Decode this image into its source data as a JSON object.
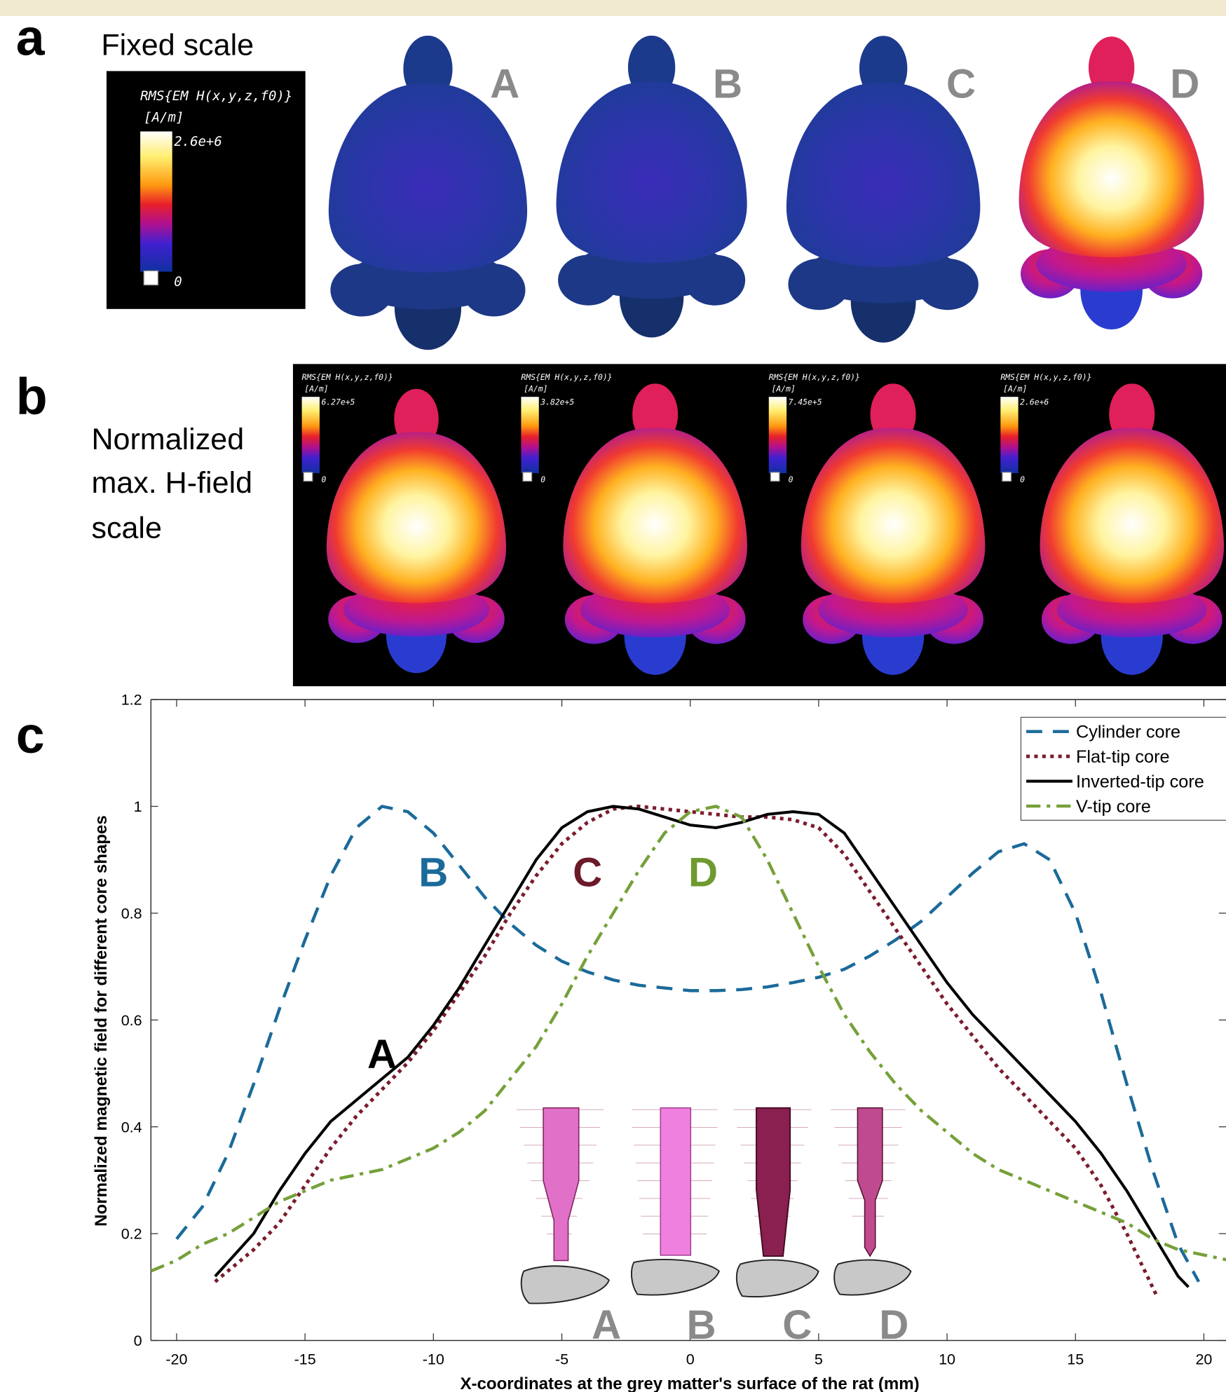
{
  "panel_a": {
    "label": "a",
    "title": "Fixed scale",
    "colorbar": {
      "quantity": "RMS{EM H(x,y,z,f0)}",
      "unit": "[A/m]",
      "max": "2.6e+6",
      "min": "0"
    },
    "brain_labels": [
      "A",
      "B",
      "C",
      "D"
    ]
  },
  "panel_b": {
    "label": "b",
    "title_lines": [
      "Normalized",
      "max. H-field",
      "scale"
    ],
    "colorbar_quantity": "RMS{EM H(x,y,z,f0)}",
    "colorbar_unit": "[A/m]",
    "colorbar_min": "0",
    "colorbar_max": [
      "6.27e+5",
      "3.82e+5",
      "7.45e+5",
      "2.6e+6"
    ]
  },
  "chart_data": {
    "type": "line",
    "panel_label": "c",
    "xlabel": "X-coordinates at the grey matter's surface of the rat (mm)",
    "ylabel": "Normalized magnetic field for different core shapes",
    "xlim": [
      -21,
      21
    ],
    "ylim": [
      0,
      1.2
    ],
    "xticks": [
      -20,
      -15,
      -10,
      -5,
      0,
      5,
      10,
      15,
      20
    ],
    "yticks": [
      0,
      0.2,
      0.4,
      0.6,
      0.8,
      1,
      1.2
    ],
    "legend": "upper right",
    "series": [
      {
        "name": "Cylinder core",
        "color": "#1b6a9a",
        "line_style": "dashed",
        "x": [
          -20,
          -19,
          -18,
          -17,
          -16,
          -15,
          -14,
          -13,
          -12,
          -11,
          -10,
          -9,
          -8,
          -7,
          -6,
          -5,
          -4,
          -3,
          -2,
          -1,
          0,
          1,
          2,
          3,
          4,
          5,
          6,
          7,
          8,
          9,
          10,
          11,
          12,
          13,
          14,
          15,
          16,
          17,
          18,
          19,
          19.8
        ],
        "values": [
          0.19,
          0.25,
          0.35,
          0.48,
          0.62,
          0.75,
          0.87,
          0.96,
          1.0,
          0.99,
          0.95,
          0.89,
          0.83,
          0.78,
          0.74,
          0.71,
          0.69,
          0.675,
          0.665,
          0.66,
          0.655,
          0.655,
          0.657,
          0.662,
          0.67,
          0.68,
          0.695,
          0.72,
          0.75,
          0.785,
          0.83,
          0.875,
          0.915,
          0.93,
          0.9,
          0.8,
          0.65,
          0.48,
          0.32,
          0.18,
          0.11
        ]
      },
      {
        "name": "Flat-tip core",
        "color": "#7a1c2e",
        "line_style": "dotted",
        "x": [
          -18.5,
          -17,
          -16,
          -15,
          -14,
          -13,
          -12,
          -11,
          -10,
          -9,
          -8,
          -7,
          -6,
          -5,
          -4,
          -3,
          -2,
          -1,
          0,
          1,
          2,
          3,
          4,
          5,
          6,
          7,
          8,
          9,
          10,
          11,
          12,
          13,
          14,
          15,
          16,
          17,
          18.2
        ],
        "values": [
          0.11,
          0.17,
          0.22,
          0.29,
          0.36,
          0.42,
          0.47,
          0.52,
          0.58,
          0.65,
          0.72,
          0.8,
          0.87,
          0.93,
          0.97,
          0.995,
          1.0,
          0.995,
          0.99,
          0.985,
          0.98,
          0.98,
          0.975,
          0.96,
          0.91,
          0.84,
          0.77,
          0.7,
          0.63,
          0.57,
          0.51,
          0.46,
          0.41,
          0.36,
          0.29,
          0.2,
          0.08
        ]
      },
      {
        "name": "Inverted-tip core",
        "color": "#000000",
        "line_style": "solid",
        "x": [
          -18.5,
          -17,
          -16,
          -15,
          -14,
          -13,
          -12,
          -11,
          -10,
          -9,
          -8,
          -7,
          -6,
          -5,
          -4,
          -3,
          -2,
          -1,
          0,
          1,
          2,
          3,
          4,
          5,
          6,
          7,
          8,
          9,
          10,
          11,
          12,
          13,
          14,
          15,
          16,
          17,
          18,
          19,
          19.4
        ],
        "values": [
          0.12,
          0.2,
          0.28,
          0.35,
          0.41,
          0.45,
          0.49,
          0.53,
          0.59,
          0.66,
          0.74,
          0.82,
          0.9,
          0.96,
          0.99,
          1.0,
          0.995,
          0.98,
          0.965,
          0.96,
          0.97,
          0.985,
          0.99,
          0.985,
          0.95,
          0.88,
          0.81,
          0.74,
          0.67,
          0.61,
          0.56,
          0.51,
          0.46,
          0.41,
          0.35,
          0.28,
          0.2,
          0.12,
          0.1
        ]
      },
      {
        "name": "V-tip core",
        "color": "#76a03a",
        "line_style": "dashdot",
        "x": [
          -21,
          -20,
          -19,
          -18,
          -17,
          -16,
          -15,
          -14,
          -13,
          -12,
          -11,
          -10,
          -9,
          -8,
          -7,
          -6,
          -5,
          -4,
          -3,
          -2,
          -1,
          0,
          1,
          2,
          3,
          4,
          5,
          6,
          7,
          8,
          9,
          10,
          11,
          12,
          13,
          14,
          15,
          16,
          17,
          18,
          19,
          20,
          21
        ],
        "values": [
          0.13,
          0.15,
          0.18,
          0.2,
          0.23,
          0.26,
          0.28,
          0.3,
          0.31,
          0.32,
          0.34,
          0.36,
          0.39,
          0.43,
          0.49,
          0.55,
          0.63,
          0.72,
          0.8,
          0.88,
          0.95,
          0.99,
          1.0,
          0.98,
          0.9,
          0.8,
          0.7,
          0.61,
          0.54,
          0.48,
          0.43,
          0.39,
          0.35,
          0.32,
          0.3,
          0.28,
          0.26,
          0.24,
          0.22,
          0.19,
          0.17,
          0.16,
          0.15
        ]
      }
    ],
    "annotations": [
      {
        "text": "A",
        "color": "#000000"
      },
      {
        "text": "B",
        "color": "#1b6a9a"
      },
      {
        "text": "C",
        "color": "#6b1a2a"
      },
      {
        "text": "D",
        "color": "#6f9a30"
      }
    ],
    "inset_labels": [
      "A",
      "B",
      "C",
      "D"
    ]
  }
}
